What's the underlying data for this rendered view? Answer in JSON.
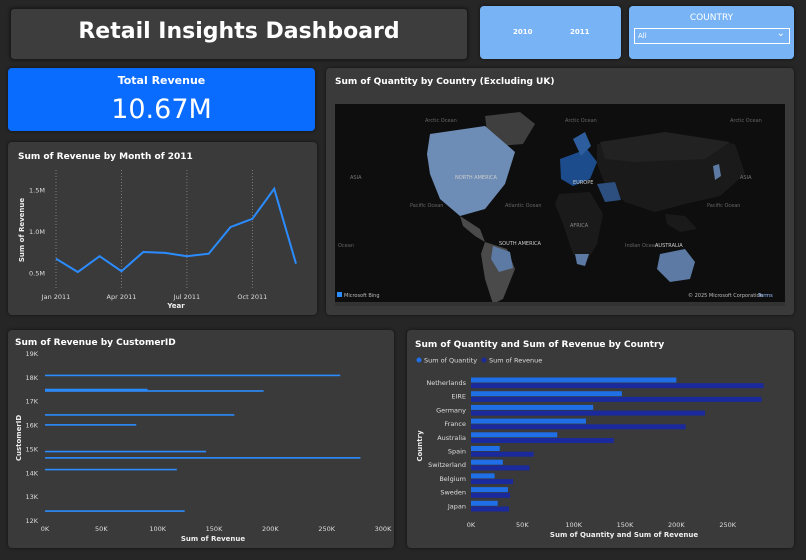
{
  "header": {
    "title": "Retail Insights Dashboard"
  },
  "year_slicer": {
    "years": [
      "2010",
      "2011"
    ]
  },
  "country_slicer": {
    "label": "COUNTRY",
    "selected": "All"
  },
  "kpi": {
    "label": "Total Revenue",
    "value": "10.67M"
  },
  "map_panel": {
    "title": "Sum of Quantity by Country (Excluding UK)",
    "labels": [
      "Arctic Ocean",
      "Arctic Ocean",
      "Arctic Ocean",
      "NORTH AMERICA",
      "ASIA",
      "ASIA",
      "EUROPE",
      "Pacific Ocean",
      "Atlantic Ocean",
      "Pacific Ocean",
      "AFRICA",
      "SOUTH AMERICA",
      "Indian Ocean",
      "AUSTRALIA",
      "Ocean"
    ],
    "attribution_left": "Microsoft Bing",
    "attribution_right": "© 2025 Microsoft Corporation",
    "terms": "Terms"
  },
  "line_panel": {
    "title": "Sum of Revenue by Month of 2011"
  },
  "customer_panel": {
    "title": "Sum of Revenue by CustomerID"
  },
  "country_panel": {
    "title": "Sum of Quantity and Sum of Revenue by Country"
  },
  "colors": {
    "accent": "#0a6cff",
    "light_blue": "#78b4f5",
    "line": "#2b8cff",
    "quantity": "#1f6fe8",
    "revenue": "#1a2a9c",
    "panel": "#3a3a3a"
  },
  "chart_data": [
    {
      "id": "line",
      "type": "line",
      "title": "Sum of Revenue by Month of 2011",
      "xlabel": "Year",
      "ylabel": "Sum of Revenue",
      "x_ticks": [
        "Jan 2011",
        "Apr 2011",
        "Jul 2011",
        "Oct 2011"
      ],
      "y_ticks": [
        "0.5M",
        "1.0M",
        "1.5M"
      ],
      "ylim": [
        0.4,
        1.65
      ],
      "values": [
        0.68,
        0.52,
        0.71,
        0.53,
        0.76,
        0.75,
        0.71,
        0.74,
        1.06,
        1.16,
        1.52,
        0.62
      ],
      "grid": "vertical dotted"
    },
    {
      "id": "customer",
      "type": "bar",
      "title": "Sum of Revenue by CustomerID",
      "xlabel": "Sum of Revenue",
      "ylabel": "CustomerID",
      "x_ticks": [
        "0K",
        "50K",
        "100K",
        "150K",
        "200K",
        "250K",
        "300K"
      ],
      "xlim": [
        0,
        300000
      ],
      "y_ticks": [
        "12K",
        "13K",
        "14K",
        "15K",
        "16K",
        "17K",
        "18K",
        "19K"
      ],
      "ylim": [
        12000,
        19000
      ],
      "customers": [
        {
          "id": 18102,
          "revenue": 262000
        },
        {
          "id": 17511,
          "revenue": 91000
        },
        {
          "id": 17450,
          "revenue": 194000
        },
        {
          "id": 16446,
          "revenue": 168000
        },
        {
          "id": 16029,
          "revenue": 81000
        },
        {
          "id": 14911,
          "revenue": 143000
        },
        {
          "id": 14646,
          "revenue": 280000
        },
        {
          "id": 14156,
          "revenue": 117000
        },
        {
          "id": 12415,
          "revenue": 124000
        }
      ]
    },
    {
      "id": "country",
      "type": "bar",
      "title": "Sum of Quantity and Sum of Revenue by Country",
      "xlabel": "Sum of Quantity and Sum of Revenue",
      "ylabel": "Country",
      "legend_position": "top-left",
      "x_ticks": [
        "0K",
        "50K",
        "100K",
        "150K",
        "200K",
        "250K"
      ],
      "xlim": [
        0,
        300000
      ],
      "categories": [
        "Netherlands",
        "EIRE",
        "Germany",
        "France",
        "Australia",
        "Spain",
        "Switzerland",
        "Belgium",
        "Sweden",
        "Japan"
      ],
      "series": [
        {
          "name": "Sum of Quantity",
          "values": [
            200000,
            147000,
            119000,
            112000,
            84000,
            28000,
            31000,
            23000,
            36000,
            26000
          ]
        },
        {
          "name": "Sum of Revenue",
          "values": [
            285000,
            283000,
            228000,
            209000,
            139000,
            61000,
            57000,
            41000,
            38000,
            37000
          ]
        }
      ]
    }
  ]
}
